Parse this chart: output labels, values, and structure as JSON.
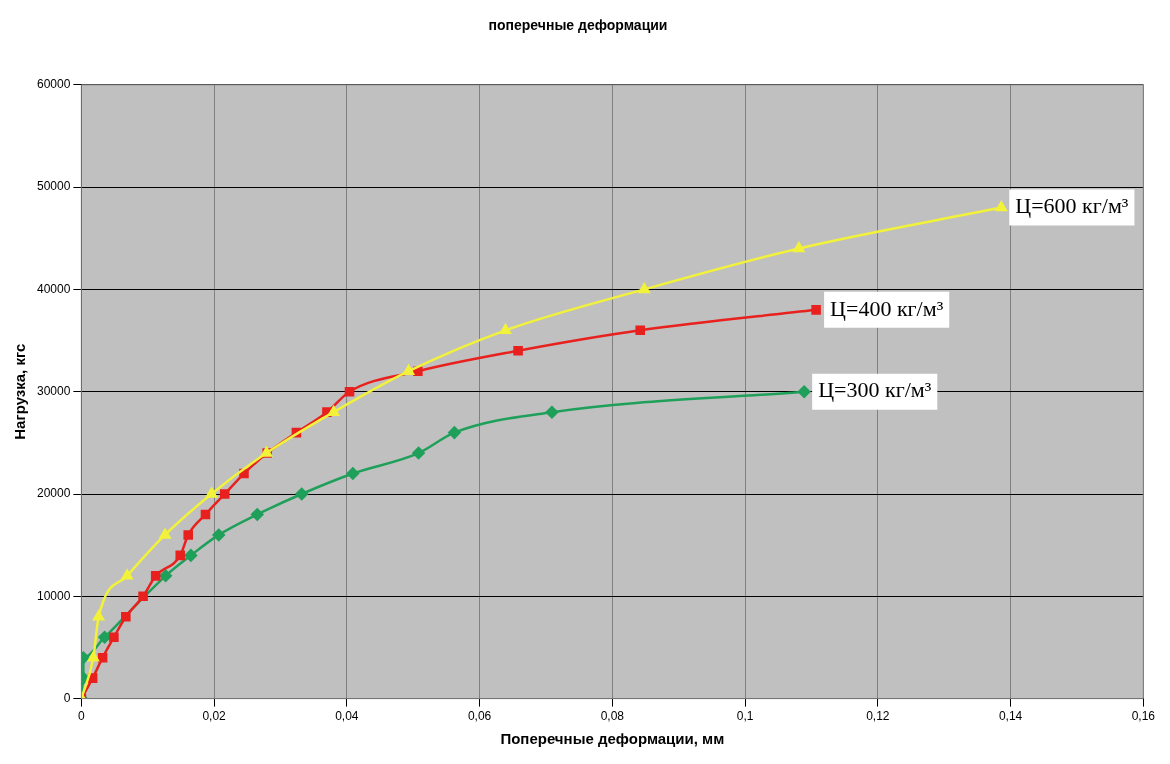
{
  "chart_data": {
    "type": "line",
    "title": "поперечные деформации",
    "xlabel": "Поперечные деформации, мм",
    "ylabel": "Нагрузка, кгс",
    "xlim": [
      0,
      0.16
    ],
    "xticks": [
      {
        "value": 0,
        "label": "0"
      },
      {
        "value": 0.02,
        "label": "0,02"
      },
      {
        "value": 0.04,
        "label": "0,04"
      },
      {
        "value": 0.06,
        "label": "0,06"
      },
      {
        "value": 0.08,
        "label": "0,08"
      },
      {
        "value": 0.1,
        "label": "0,1"
      },
      {
        "value": 0.12,
        "label": "0,12"
      },
      {
        "value": 0.14,
        "label": "0,14"
      },
      {
        "value": 0.16,
        "label": "0,16"
      }
    ],
    "ylim": [
      0,
      60000
    ],
    "yticks": [
      0,
      10000,
      20000,
      30000,
      40000,
      50000,
      60000
    ],
    "grid": true,
    "legend": false,
    "series": [
      {
        "name": "Ц=300 кг/м³",
        "color": "#1fa05a",
        "marker": "diamond",
        "x": [
          0,
          0.0003,
          0.0003,
          0.0035,
          0.0127,
          0.0165,
          0.0207,
          0.0265,
          0.0332,
          0.0409,
          0.0508,
          0.0562,
          0.0709,
          0.1089
        ],
        "values": [
          0,
          2000,
          4000,
          6000,
          12000,
          14000,
          16000,
          18000,
          20000,
          22000,
          24000,
          26000,
          28000,
          30000
        ]
      },
      {
        "name": "Ц=400 кг/м³",
        "color": "#e8201e",
        "marker": "square",
        "x": [
          0,
          0.0017,
          0.0032,
          0.0049,
          0.0067,
          0.0093,
          0.0112,
          0.0149,
          0.0161,
          0.0187,
          0.0216,
          0.0245,
          0.028,
          0.0324,
          0.037,
          0.0404,
          0.0507,
          0.0658,
          0.0842,
          0.1107
        ],
        "values": [
          0,
          2000,
          4000,
          6000,
          8000,
          10000,
          12000,
          14000,
          16000,
          18000,
          20000,
          22000,
          24000,
          26000,
          28000,
          30000,
          32000,
          34000,
          36000,
          38000
        ]
      },
      {
        "name": "Ц=600 кг/м³",
        "color": "#f2f23a",
        "marker": "triangle",
        "x": [
          0,
          0.0018,
          0.0026,
          0.0069,
          0.0126,
          0.0196,
          0.0279,
          0.038,
          0.0493,
          0.0639,
          0.0848,
          0.1081,
          0.1386
        ],
        "values": [
          0,
          4000,
          8000,
          12000,
          16000,
          20000,
          24000,
          28000,
          32000,
          36000,
          40000,
          44000,
          48000
        ]
      }
    ]
  }
}
